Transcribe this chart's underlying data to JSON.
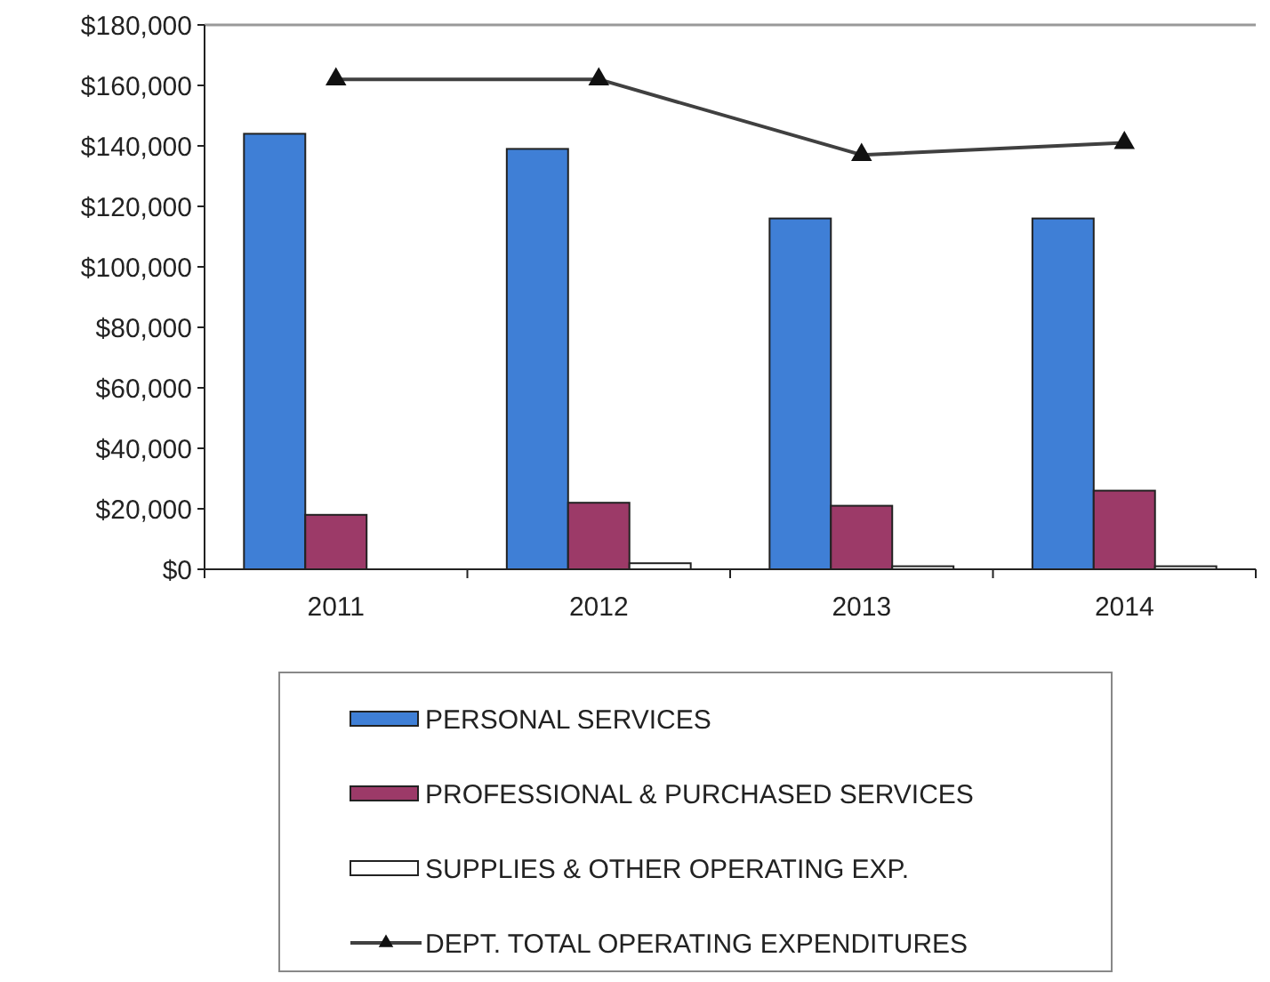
{
  "chart_data": {
    "type": "bar",
    "categories": [
      "2011",
      "2012",
      "2013",
      "2014"
    ],
    "series": [
      {
        "name": "PERSONAL SERVICES",
        "color": "#3f7fd6",
        "values": [
          144000,
          139000,
          116000,
          116000
        ]
      },
      {
        "name": "PROFESSIONAL & PURCHASED SERVICES",
        "color": "#9c3a68",
        "values": [
          18000,
          22000,
          21000,
          26000
        ]
      },
      {
        "name": "SUPPLIES & OTHER OPERATING EXP.",
        "color": "#ffffff",
        "values": [
          null,
          2000,
          1000,
          1000
        ]
      },
      {
        "name": "DEPT. TOTAL OPERATING EXPENDITURES",
        "color": "#404040",
        "type": "line",
        "marker": "triangle",
        "values": [
          162000,
          162000,
          137000,
          141000
        ]
      }
    ],
    "ylim": [
      0,
      180000
    ],
    "yticks": [
      {
        "value": 0,
        "label": "$0"
      },
      {
        "value": 20000,
        "label": "$20,000"
      },
      {
        "value": 40000,
        "label": "$40,000"
      },
      {
        "value": 60000,
        "label": "$60,000"
      },
      {
        "value": 80000,
        "label": "$80,000"
      },
      {
        "value": 100000,
        "label": "$100,000"
      },
      {
        "value": 120000,
        "label": "$120,000"
      },
      {
        "value": 140000,
        "label": "$140,000"
      },
      {
        "value": 160000,
        "label": "$160,000"
      },
      {
        "value": 180000,
        "label": "$180,000"
      }
    ],
    "legend": "bottom"
  }
}
